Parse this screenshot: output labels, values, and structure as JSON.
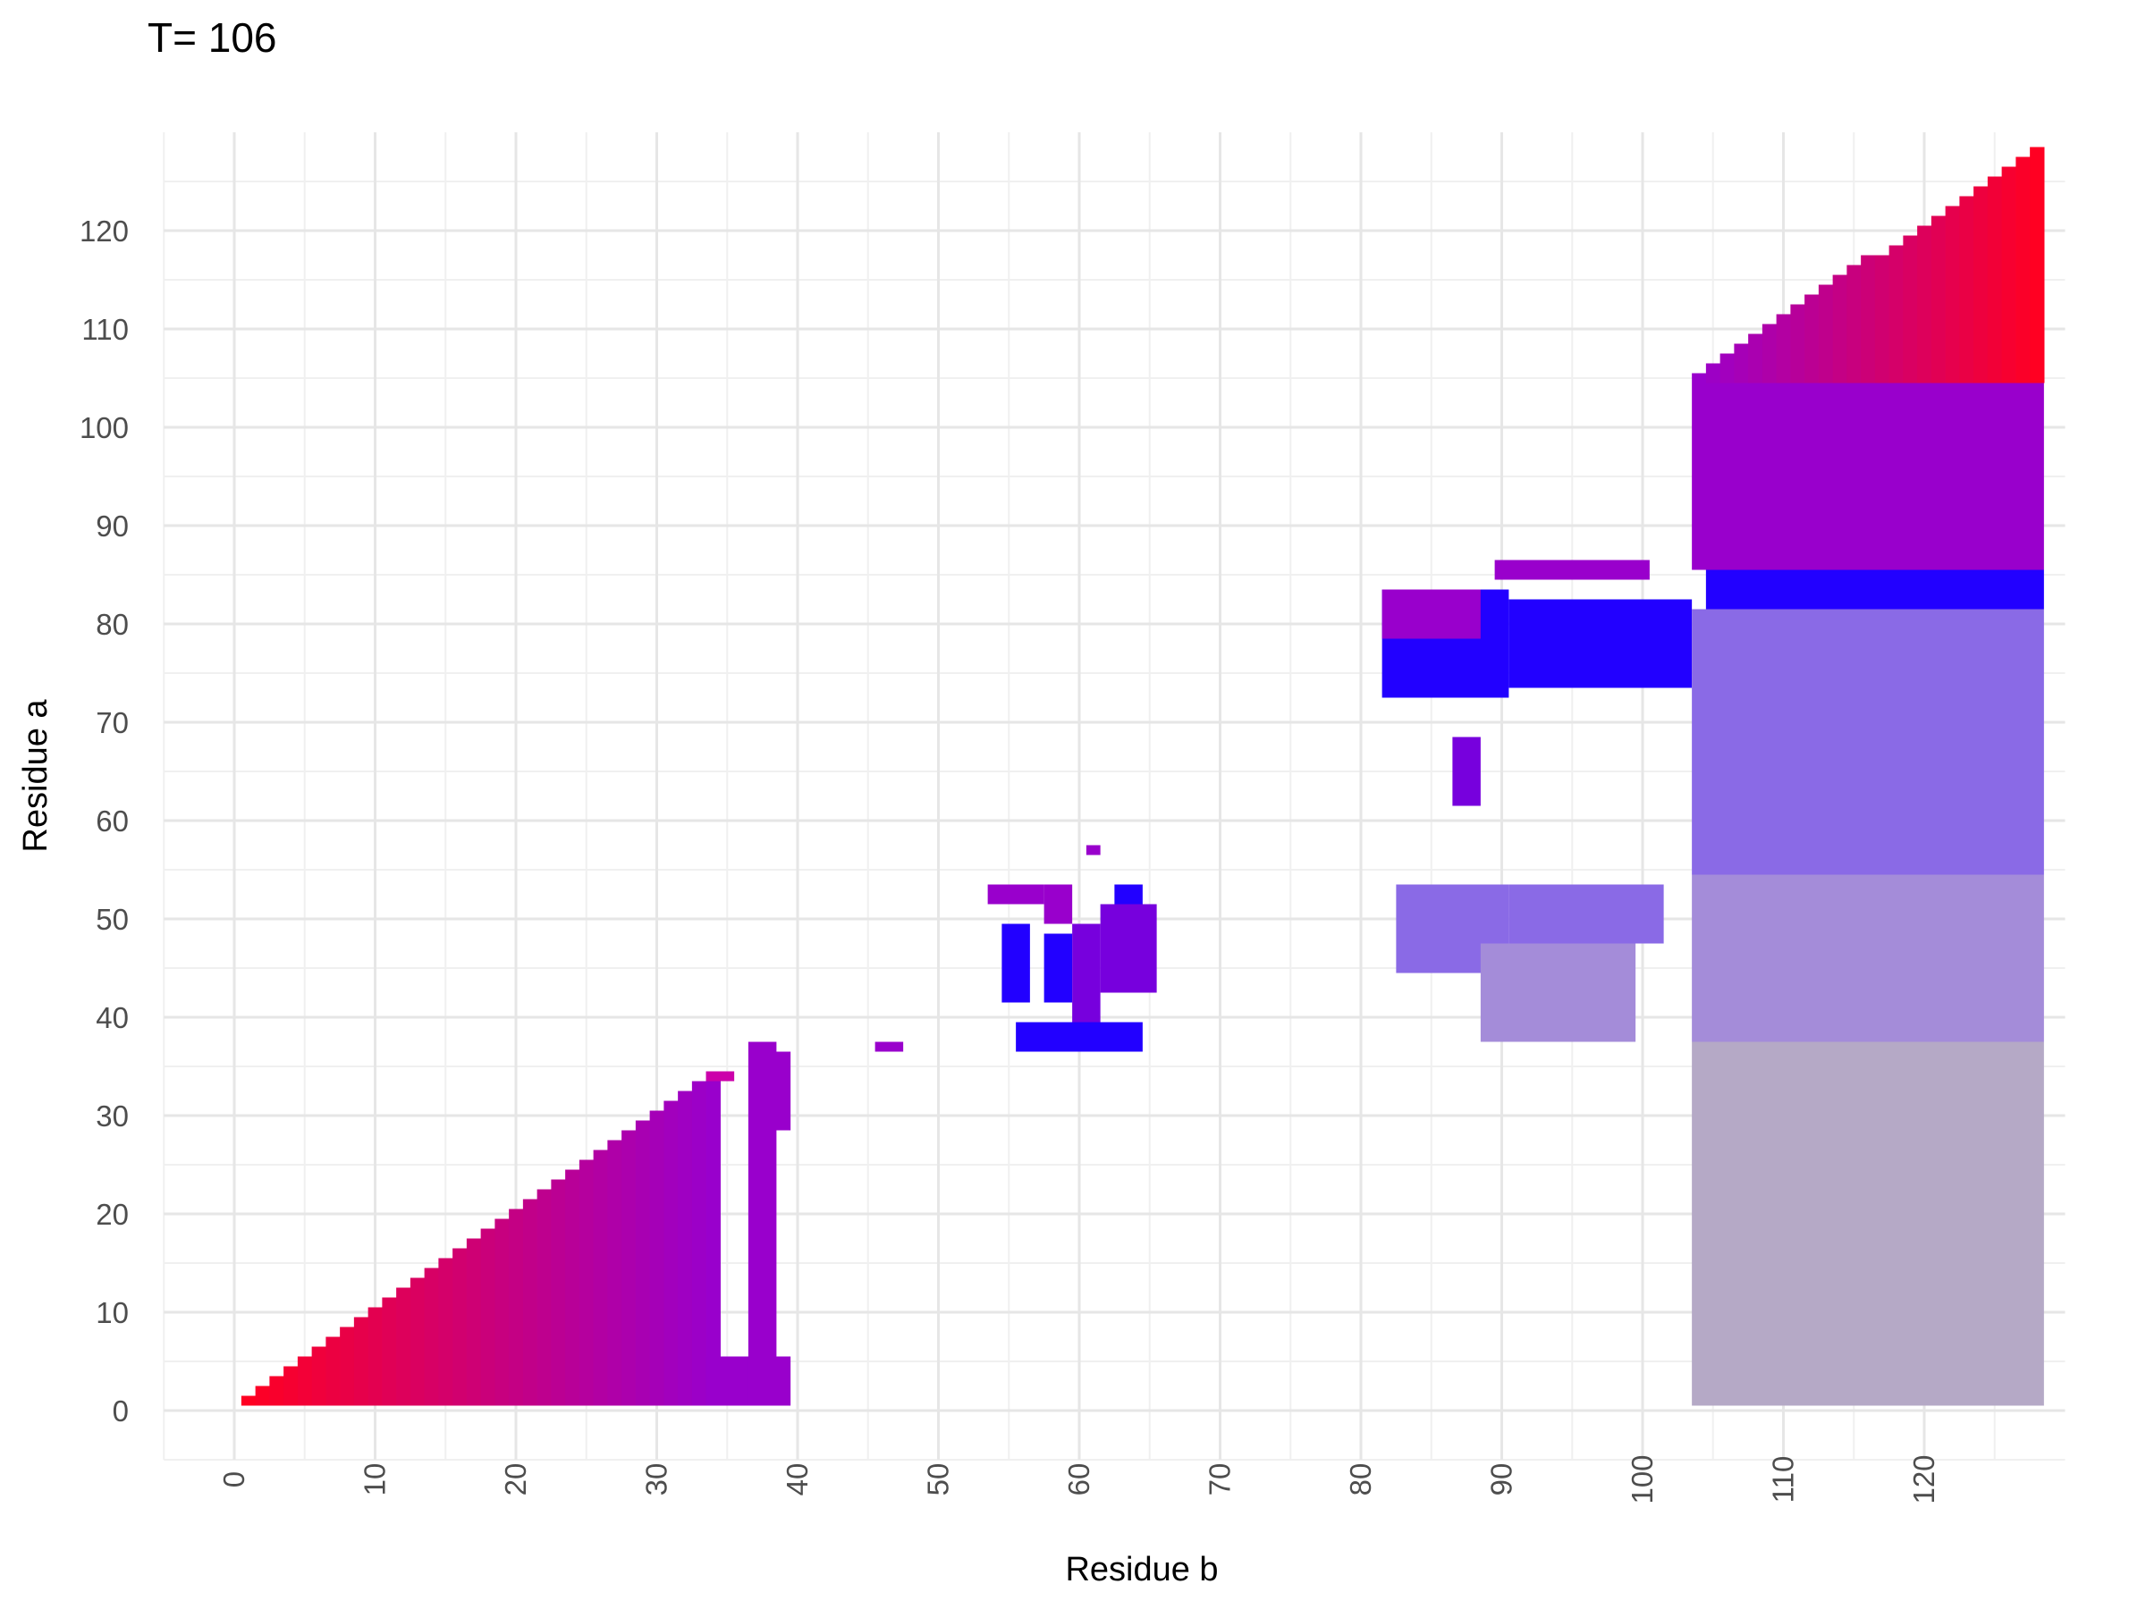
{
  "chart_data": {
    "type": "heatmap",
    "title": "T= 106",
    "xlabel": "Residue b",
    "ylabel": "Residue a",
    "xlim": [
      -5,
      130
    ],
    "ylim": [
      -5,
      130
    ],
    "x_ticks": [
      0,
      10,
      20,
      30,
      40,
      50,
      60,
      70,
      80,
      90,
      100,
      110,
      120
    ],
    "y_ticks": [
      0,
      10,
      20,
      30,
      40,
      50,
      60,
      70,
      80,
      90,
      100,
      110,
      120
    ],
    "grid": true,
    "colors": {
      "red": "#ff0022",
      "crimson": "#dd0066",
      "magenta": "#cc00aa",
      "purple": "#9900cc",
      "violet": "#7700dd",
      "blue": "#2200ff",
      "lavender": "#8a6ae6",
      "lilac": "#a48cd9",
      "gray": "#b5a9c6"
    },
    "regions": [
      {
        "shape": "triangle",
        "b": [
          1,
          34
        ],
        "color_start": "red",
        "color_end": "purple"
      },
      {
        "shape": "rect",
        "b": [
          34,
          39
        ],
        "a": [
          1,
          5
        ],
        "color": "purple"
      },
      {
        "shape": "rect",
        "b": [
          37,
          38
        ],
        "a": [
          1,
          37
        ],
        "color": "purple"
      },
      {
        "shape": "rect",
        "b": [
          38,
          39
        ],
        "a": [
          29,
          36
        ],
        "color": "purple"
      },
      {
        "shape": "rect",
        "b": [
          34,
          35
        ],
        "a": [
          34,
          34
        ],
        "color": "magenta"
      },
      {
        "shape": "rect",
        "b": [
          46,
          47
        ],
        "a": [
          37,
          37
        ],
        "color": "purple"
      },
      {
        "shape": "rect",
        "b": [
          56,
          64
        ],
        "a": [
          37,
          39
        ],
        "color": "blue"
      },
      {
        "shape": "rect",
        "b": [
          55,
          56
        ],
        "a": [
          42,
          49
        ],
        "color": "blue"
      },
      {
        "shape": "rect",
        "b": [
          58,
          59
        ],
        "a": [
          42,
          48
        ],
        "color": "blue"
      },
      {
        "shape": "rect",
        "b": [
          62,
          65
        ],
        "a": [
          43,
          51
        ],
        "color": "violet"
      },
      {
        "shape": "rect",
        "b": [
          60,
          61
        ],
        "a": [
          40,
          49
        ],
        "color": "violet"
      },
      {
        "shape": "rect",
        "b": [
          54,
          57
        ],
        "a": [
          52,
          53
        ],
        "color": "purple"
      },
      {
        "shape": "rect",
        "b": [
          58,
          59
        ],
        "a": [
          50,
          53
        ],
        "color": "purple"
      },
      {
        "shape": "rect",
        "b": [
          63,
          64
        ],
        "a": [
          52,
          53
        ],
        "color": "blue"
      },
      {
        "shape": "rect",
        "b": [
          61,
          61
        ],
        "a": [
          57,
          57
        ],
        "color": "purple"
      },
      {
        "shape": "rect",
        "b": [
          83,
          90
        ],
        "a": [
          45,
          53
        ],
        "color": "lavender"
      },
      {
        "shape": "rect",
        "b": [
          91,
          101
        ],
        "a": [
          48,
          53
        ],
        "color": "lavender"
      },
      {
        "shape": "rect",
        "b": [
          89,
          99
        ],
        "a": [
          38,
          47
        ],
        "color": "lilac"
      },
      {
        "shape": "rect",
        "b": [
          82,
          90
        ],
        "a": [
          73,
          83
        ],
        "color": "blue"
      },
      {
        "shape": "rect",
        "b": [
          91,
          103
        ],
        "a": [
          74,
          82
        ],
        "color": "blue"
      },
      {
        "shape": "rect",
        "b": [
          90,
          100
        ],
        "a": [
          85,
          86
        ],
        "color": "purple"
      },
      {
        "shape": "rect",
        "b": [
          82,
          88
        ],
        "a": [
          79,
          83
        ],
        "color": "purple"
      },
      {
        "shape": "rect",
        "b": [
          87,
          88
        ],
        "a": [
          62,
          68
        ],
        "color": "violet"
      },
      {
        "shape": "rect",
        "b": [
          104,
          128
        ],
        "a": [
          1,
          37
        ],
        "color": "gray"
      },
      {
        "shape": "rect",
        "b": [
          104,
          128
        ],
        "a": [
          38,
          54
        ],
        "color": "lilac"
      },
      {
        "shape": "rect",
        "b": [
          104,
          128
        ],
        "a": [
          55,
          81
        ],
        "color": "lavender"
      },
      {
        "shape": "rect",
        "b": [
          105,
          128
        ],
        "a": [
          82,
          85
        ],
        "color": "blue"
      },
      {
        "shape": "rect",
        "b": [
          104,
          128
        ],
        "a": [
          86,
          104
        ],
        "color": "purple"
      },
      {
        "shape": "triangle",
        "b": [
          104,
          128
        ],
        "a_start": 105,
        "a_end": 128,
        "color_start": "purple",
        "color_end": "red"
      }
    ]
  }
}
